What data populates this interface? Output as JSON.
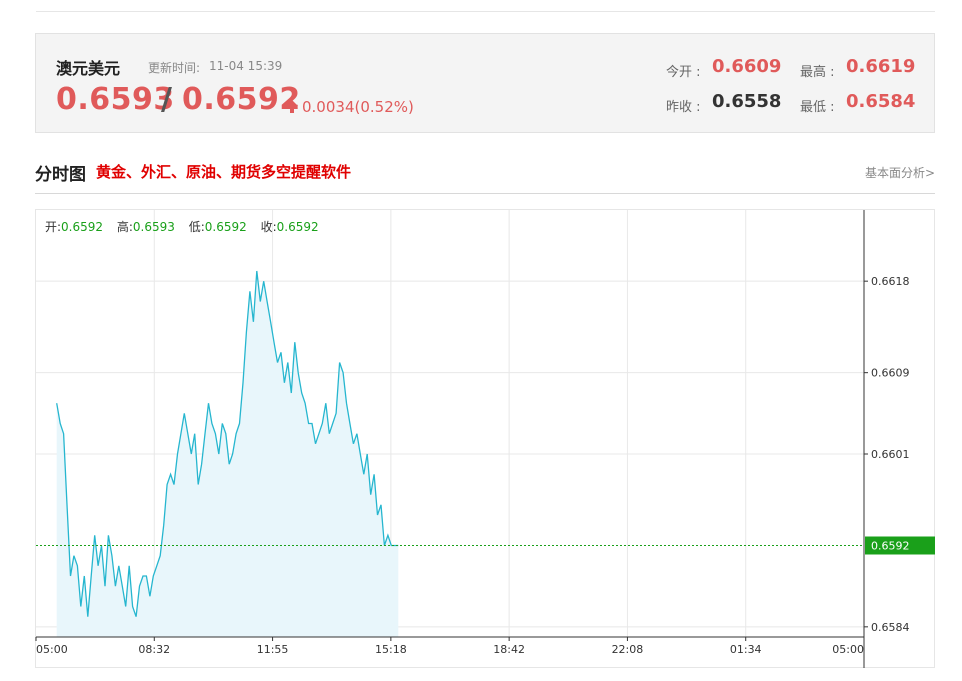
{
  "quote": {
    "name": "澳元美元",
    "update_label": "更新时间:",
    "update_time": "11-04 15:39",
    "bid": "0.6593",
    "separator": "/",
    "ask": "0.6592",
    "change": "0.0034(0.52%)",
    "open_label": "今开 :",
    "open": "0.6609",
    "high_label": "最高 :",
    "high": "0.6619",
    "prev_close_label": "昨收 :",
    "prev_close": "0.6558",
    "low_label": "最低 :",
    "low": "0.6584"
  },
  "section": {
    "title": "分时图",
    "promo": "黄金、外汇、原油、期货多空提醒软件",
    "fundamental": "基本面分析>"
  },
  "ohlc": {
    "open_label": "开:",
    "open": "0.6592",
    "high_label": "高:",
    "high": "0.6593",
    "low_label": "低:",
    "low": "0.6592",
    "close_label": "收:",
    "close": "0.6592"
  },
  "colors": {
    "up": "#e05a5a",
    "line": "#26b6cf",
    "area": "#e8f6fb",
    "current_price_tag": "#1aa01a",
    "grid": "#e8e8e8"
  },
  "chart_data": {
    "type": "area",
    "x_ticks": [
      "05:00",
      "08:32",
      "11:55",
      "15:18",
      "18:42",
      "22:08",
      "01:34",
      "05:00"
    ],
    "y_ticks": [
      0.6618,
      0.6609,
      0.6601,
      0.6592,
      0.6584
    ],
    "ylim": [
      0.6583,
      0.6625
    ],
    "current_price": 0.6592,
    "current_price_label": "0.6592",
    "series": [
      {
        "x": [
          "05:36",
          "05:42",
          "05:48",
          "05:54",
          "06:00",
          "06:06",
          "06:12",
          "06:18",
          "06:24",
          "06:30",
          "06:36",
          "06:42",
          "06:48",
          "06:54",
          "07:00",
          "07:06",
          "07:12",
          "07:18",
          "07:24",
          "07:30",
          "07:36",
          "07:42",
          "07:48",
          "07:54",
          "08:00",
          "08:06",
          "08:12",
          "08:18",
          "08:24",
          "08:30",
          "08:36",
          "08:42",
          "08:48",
          "08:54",
          "09:00",
          "09:06",
          "09:12",
          "09:18",
          "09:24",
          "09:30",
          "09:36",
          "09:42",
          "09:48",
          "09:54",
          "10:00",
          "10:06",
          "10:12",
          "10:18",
          "10:24",
          "10:30",
          "10:36",
          "10:42",
          "10:48",
          "10:54",
          "11:00",
          "11:06",
          "11:12",
          "11:18",
          "11:24",
          "11:30",
          "11:36",
          "11:42",
          "11:48",
          "11:54",
          "12:00",
          "12:06",
          "12:12",
          "12:18",
          "12:24",
          "12:30",
          "12:36",
          "12:42",
          "12:48",
          "12:54",
          "13:00",
          "13:06",
          "13:12",
          "13:18",
          "13:24",
          "13:30",
          "13:36",
          "13:42",
          "13:48",
          "13:54",
          "14:00",
          "14:06",
          "14:12",
          "14:18",
          "14:24",
          "14:30",
          "14:36",
          "14:42",
          "14:48",
          "14:54",
          "15:00",
          "15:06",
          "15:12",
          "15:18",
          "15:24",
          "15:30"
        ],
        "values": [
          0.6606,
          0.6604,
          0.6603,
          0.6596,
          0.6589,
          0.6591,
          0.659,
          0.6586,
          0.6589,
          0.6585,
          0.6589,
          0.6593,
          0.659,
          0.6592,
          0.6588,
          0.6593,
          0.6591,
          0.6588,
          0.659,
          0.6588,
          0.6586,
          0.659,
          0.6586,
          0.6585,
          0.6588,
          0.6589,
          0.6589,
          0.6587,
          0.6589,
          0.659,
          0.6591,
          0.6594,
          0.6598,
          0.6599,
          0.6598,
          0.6601,
          0.6603,
          0.6605,
          0.6603,
          0.6601,
          0.6603,
          0.6598,
          0.66,
          0.6603,
          0.6606,
          0.6604,
          0.6603,
          0.6601,
          0.6604,
          0.6603,
          0.66,
          0.6601,
          0.6603,
          0.6604,
          0.6608,
          0.6613,
          0.6617,
          0.6614,
          0.6619,
          0.6616,
          0.6618,
          0.6616,
          0.6614,
          0.6612,
          0.661,
          0.6611,
          0.6608,
          0.661,
          0.6607,
          0.6612,
          0.6609,
          0.6607,
          0.6606,
          0.6604,
          0.6604,
          0.6602,
          0.6603,
          0.6604,
          0.6606,
          0.6603,
          0.6604,
          0.6605,
          0.661,
          0.6609,
          0.6606,
          0.6604,
          0.6602,
          0.6603,
          0.6601,
          0.6599,
          0.6601,
          0.6597,
          0.6599,
          0.6595,
          0.6596,
          0.6592,
          0.6593,
          0.6592,
          0.6592,
          0.6592
        ]
      }
    ]
  }
}
